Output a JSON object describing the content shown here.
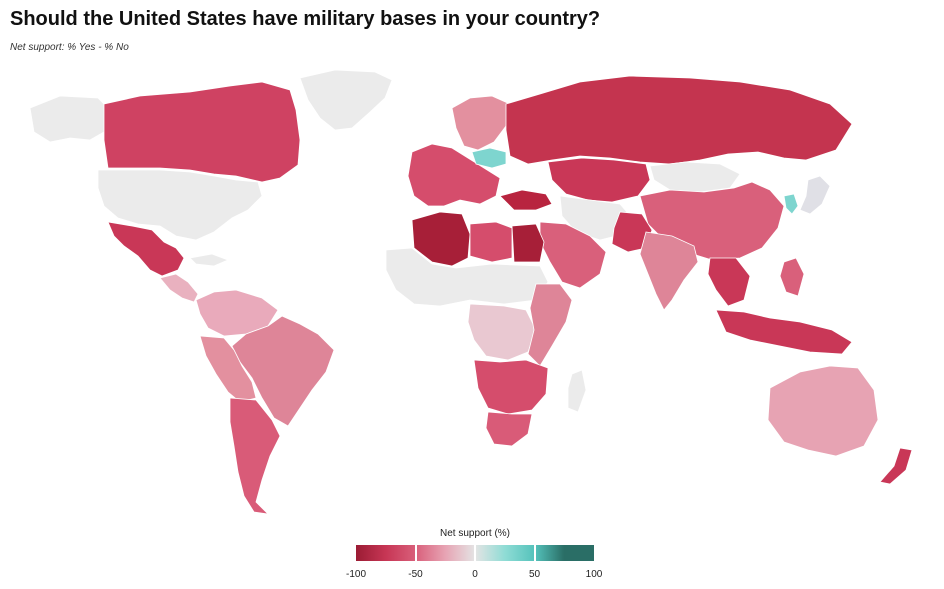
{
  "header": {
    "title": "Should the United States have military bases in your country?",
    "subtitle": "Net support: % Yes - % No"
  },
  "legend": {
    "title": "Net support (%)",
    "ticks": [
      "-100",
      "-50",
      "0",
      "50",
      "100"
    ],
    "gradient": [
      "#9b1c34",
      "#c73655",
      "#d9607b",
      "#e7a3b3",
      "#e4e4e4",
      "#8fdcd5",
      "#54c2bb",
      "#2a6e66"
    ]
  },
  "map": {
    "no_data_color": "#ebebeb",
    "regions": [
      {
        "id": "canada",
        "color": "#cf4262",
        "value_hint": -70
      },
      {
        "id": "alaska",
        "color": "#ebebeb"
      },
      {
        "id": "greenland",
        "color": "#ebebeb"
      },
      {
        "id": "usa",
        "color": "#ebebeb"
      },
      {
        "id": "mexico",
        "color": "#c93757"
      },
      {
        "id": "central-america",
        "color": "#e9b1bf"
      },
      {
        "id": "cuba",
        "color": "#ebebeb"
      },
      {
        "id": "colombia-venezuela",
        "color": "#e9aabb"
      },
      {
        "id": "brazil",
        "color": "#de8598"
      },
      {
        "id": "peru-bolivia",
        "color": "#e3909f"
      },
      {
        "id": "argentina-chile",
        "color": "#d95b78"
      },
      {
        "id": "west-europe",
        "color": "#d54d6c"
      },
      {
        "id": "scandinavia",
        "color": "#e3909f"
      },
      {
        "id": "poland",
        "color": "#7ed5cf"
      },
      {
        "id": "russia",
        "color": "#c4344f"
      },
      {
        "id": "kazakhstan-central-asia",
        "color": "#c93757"
      },
      {
        "id": "mongolia",
        "color": "#ebebeb"
      },
      {
        "id": "china",
        "color": "#d9607b"
      },
      {
        "id": "korea",
        "color": "#7ed5cf"
      },
      {
        "id": "japan",
        "color": "#e0e0e6"
      },
      {
        "id": "india",
        "color": "#de8598"
      },
      {
        "id": "pakistan",
        "color": "#c93757"
      },
      {
        "id": "iran-afghanistan",
        "color": "#ebebeb"
      },
      {
        "id": "arabia",
        "color": "#d9607b"
      },
      {
        "id": "turkey",
        "color": "#b8243f"
      },
      {
        "id": "algeria",
        "color": "#a71f38"
      },
      {
        "id": "libya",
        "color": "#d54d6c"
      },
      {
        "id": "egypt",
        "color": "#a71f38"
      },
      {
        "id": "sahel-west-africa",
        "color": "#ebebeb"
      },
      {
        "id": "central-africa",
        "color": "#e9c8d1"
      },
      {
        "id": "east-africa",
        "color": "#de8598"
      },
      {
        "id": "southern-africa",
        "color": "#d54d6c"
      },
      {
        "id": "south-africa",
        "color": "#d95b78"
      },
      {
        "id": "madagascar",
        "color": "#ebebeb"
      },
      {
        "id": "southeast-asia",
        "color": "#c93757"
      },
      {
        "id": "indonesia",
        "color": "#c93757"
      },
      {
        "id": "philippines",
        "color": "#d9607b"
      },
      {
        "id": "australia",
        "color": "#e7a3b3"
      },
      {
        "id": "new-zealand",
        "color": "#c93757"
      }
    ]
  }
}
